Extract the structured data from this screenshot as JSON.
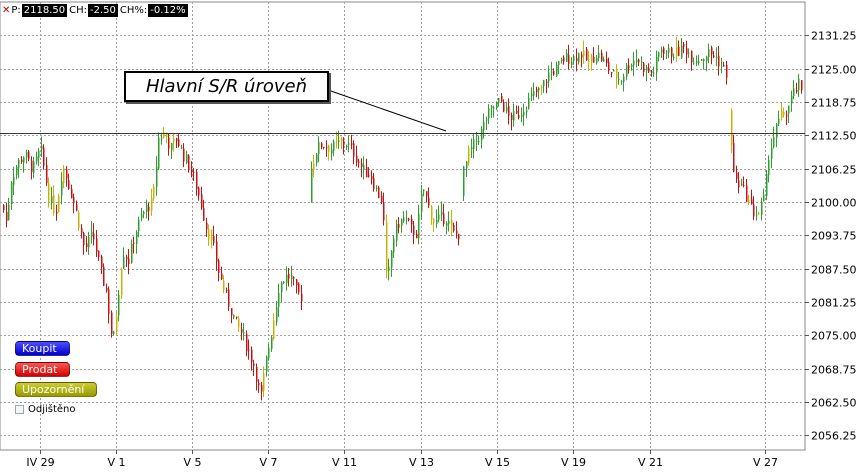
{
  "info_bar": {
    "price_label": "P:",
    "price_value": "2118.50",
    "change_label": "CH:",
    "change_value": "-2.50",
    "change_pct_label": "CH%:",
    "change_pct_value": "-0.12%"
  },
  "annotation_text": "Hlavní S/R úroveň",
  "buttons": {
    "buy": "Koupit",
    "sell": "Prodat",
    "alert": "Upozornění"
  },
  "hedged_label": "Odjištěno",
  "colors": {
    "up": "#2e9e2e",
    "down": "#c81010",
    "neutral": "#c8b400",
    "grid": "#a0a0a0",
    "sr_line": "#333333"
  },
  "chart_data": {
    "type": "candlestick",
    "title": "",
    "ylim": [
      2053.5,
      2137.5
    ],
    "y_ticks": [
      "2131.25",
      "2125.00",
      "2118.75",
      "2112.50",
      "2106.25",
      "2100.00",
      "2093.75",
      "2087.50",
      "2081.25",
      "2075.00",
      "2068.75",
      "2062.50",
      "2056.25"
    ],
    "x_ticks": [
      "IV 29",
      "V 1",
      "V 5",
      "V 7",
      "V 11",
      "V 13",
      "V 15",
      "V 19",
      "V 21",
      "V 27"
    ],
    "support_resistance_level": 2113.0,
    "price_path": [
      [
        0,
        2101
      ],
      [
        6,
        2096
      ],
      [
        10,
        2104
      ],
      [
        16,
        2107
      ],
      [
        24,
        2109
      ],
      [
        32,
        2106
      ],
      [
        40,
        2110
      ],
      [
        48,
        2101
      ],
      [
        55,
        2098
      ],
      [
        62,
        2107
      ],
      [
        70,
        2102
      ],
      [
        77,
        2097
      ],
      [
        84,
        2091
      ],
      [
        92,
        2094
      ],
      [
        100,
        2087
      ],
      [
        106,
        2083
      ],
      [
        112,
        2073
      ],
      [
        116,
        2080
      ],
      [
        122,
        2091
      ],
      [
        128,
        2089
      ],
      [
        134,
        2094
      ],
      [
        140,
        2097
      ],
      [
        146,
        2099
      ],
      [
        152,
        2100
      ],
      [
        158,
        2112
      ],
      [
        164,
        2113
      ],
      [
        170,
        2110
      ],
      [
        176,
        2112
      ],
      [
        182,
        2109
      ],
      [
        188,
        2107
      ],
      [
        194,
        2104
      ],
      [
        200,
        2100
      ],
      [
        206,
        2095
      ],
      [
        212,
        2092
      ],
      [
        218,
        2087
      ],
      [
        224,
        2083
      ],
      [
        230,
        2080
      ],
      [
        236,
        2077
      ],
      [
        242,
        2075
      ],
      [
        248,
        2072
      ],
      [
        254,
        2069
      ],
      [
        260,
        2063
      ],
      [
        266,
        2071
      ],
      [
        272,
        2077
      ],
      [
        278,
        2084
      ],
      [
        284,
        2086
      ],
      [
        290,
        2086
      ],
      [
        296,
        2083
      ],
      [
        302,
        2082
      ],
      [
        310,
        2106
      ],
      [
        316,
        2110
      ],
      [
        322,
        2111
      ],
      [
        330,
        2110
      ],
      [
        338,
        2111
      ],
      [
        346,
        2111
      ],
      [
        354,
        2109
      ],
      [
        362,
        2106
      ],
      [
        370,
        2105
      ],
      [
        376,
        2102
      ],
      [
        382,
        2100
      ],
      [
        386,
        2084
      ],
      [
        392,
        2093
      ],
      [
        398,
        2096
      ],
      [
        404,
        2097
      ],
      [
        410,
        2095
      ],
      [
        416,
        2094
      ],
      [
        422,
        2103
      ],
      [
        428,
        2099
      ],
      [
        434,
        2096
      ],
      [
        440,
        2097
      ],
      [
        446,
        2097
      ],
      [
        452,
        2094
      ],
      [
        458,
        2094
      ],
      [
        462,
        2105
      ],
      [
        468,
        2109
      ],
      [
        474,
        2111
      ],
      [
        480,
        2113
      ],
      [
        486,
        2116
      ],
      [
        494,
        2118
      ],
      [
        500,
        2119
      ],
      [
        508,
        2116
      ],
      [
        516,
        2116
      ],
      [
        524,
        2118
      ],
      [
        532,
        2120
      ],
      [
        540,
        2121
      ],
      [
        548,
        2124
      ],
      [
        556,
        2125
      ],
      [
        564,
        2127
      ],
      [
        572,
        2127
      ],
      [
        580,
        2128
      ],
      [
        588,
        2126
      ],
      [
        596,
        2128
      ],
      [
        604,
        2126
      ],
      [
        612,
        2124
      ],
      [
        620,
        2123
      ],
      [
        628,
        2126
      ],
      [
        636,
        2127
      ],
      [
        644,
        2125
      ],
      [
        652,
        2124
      ],
      [
        660,
        2129
      ],
      [
        668,
        2128
      ],
      [
        676,
        2128
      ],
      [
        684,
        2129
      ],
      [
        692,
        2127
      ],
      [
        700,
        2127
      ],
      [
        708,
        2128
      ],
      [
        716,
        2127
      ],
      [
        722,
        2125
      ],
      [
        726,
        2124
      ],
      [
        730,
        2111
      ],
      [
        734,
        2104
      ],
      [
        740,
        2103
      ],
      [
        746,
        2101
      ],
      [
        752,
        2098
      ],
      [
        758,
        2098
      ],
      [
        764,
        2101
      ],
      [
        768,
        2109
      ],
      [
        774,
        2113
      ],
      [
        780,
        2116
      ],
      [
        786,
        2117
      ],
      [
        792,
        2120
      ],
      [
        798,
        2122
      ],
      [
        802,
        2119
      ]
    ]
  }
}
